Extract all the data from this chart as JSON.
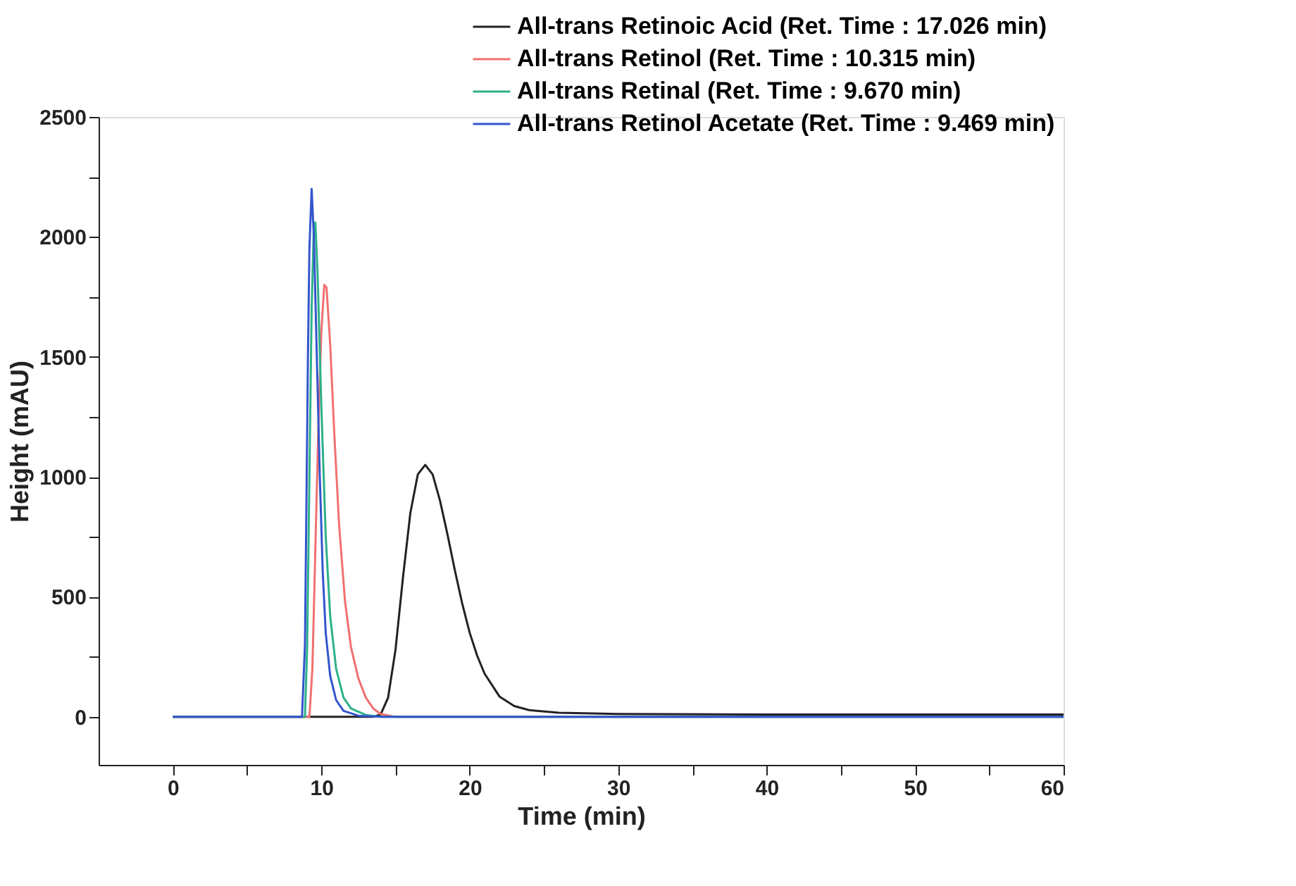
{
  "chart_data": {
    "type": "line",
    "xlabel": "Time (min)",
    "ylabel": "Height (mAU)",
    "xlim": [
      -5,
      60
    ],
    "ylim": [
      -200,
      2500
    ],
    "xticks": [
      0,
      {
        "value": 5,
        "label": null
      },
      10,
      {
        "value": 15,
        "label": null
      },
      20,
      {
        "value": 25,
        "label": null
      },
      30,
      {
        "value": 35,
        "label": null
      },
      40,
      {
        "value": 45,
        "label": null
      },
      50,
      {
        "value": 55,
        "label": null
      },
      60
    ],
    "yticks": [
      0,
      {
        "value": 250,
        "label": null
      },
      500,
      {
        "value": 750,
        "label": null
      },
      1000,
      {
        "value": 1250,
        "label": null
      },
      1500,
      {
        "value": 1750,
        "label": null
      },
      2000,
      {
        "value": 2250,
        "label": null
      },
      2500
    ],
    "legend": "top right",
    "grid": false,
    "marker": "none",
    "line_style": "solid",
    "series": [
      {
        "name": "All-trans Retinoic Acid (Ret. Time : 17.026 min)",
        "color": "#222222",
        "x": [
          0,
          13.5,
          14.0,
          14.5,
          15.0,
          15.5,
          16.0,
          16.5,
          17.0,
          17.5,
          18.0,
          18.5,
          19.0,
          19.5,
          20.0,
          20.5,
          21,
          22,
          23,
          24,
          26,
          30,
          40,
          60
        ],
        "values": [
          0,
          0,
          10,
          80,
          280,
          580,
          850,
          1010,
          1050,
          1010,
          900,
          760,
          610,
          470,
          350,
          255,
          180,
          85,
          45,
          28,
          17,
          12,
          10,
          10
        ]
      },
      {
        "name": "All-trans Retinol (Ret. Time : 10.315 min)",
        "color": "#f07070",
        "x": [
          0,
          9.2,
          9.4,
          9.6,
          9.8,
          10.0,
          10.2,
          10.35,
          10.6,
          10.9,
          11.2,
          11.6,
          12.0,
          12.5,
          13.0,
          13.5,
          14.0,
          15,
          60
        ],
        "values": [
          0,
          0,
          200,
          700,
          1200,
          1600,
          1800,
          1790,
          1550,
          1150,
          800,
          480,
          290,
          160,
          80,
          35,
          12,
          0,
          0
        ]
      },
      {
        "name": "All-trans Retinal (Ret. Time : 9.670 min)",
        "color": "#2db08a",
        "x": [
          0,
          8.9,
          9.05,
          9.2,
          9.35,
          9.5,
          9.6,
          9.75,
          10.0,
          10.3,
          10.6,
          11.0,
          11.5,
          12.0,
          13,
          14,
          60
        ],
        "values": [
          0,
          0,
          300,
          1000,
          1700,
          2050,
          2060,
          1850,
          1300,
          750,
          420,
          200,
          80,
          35,
          8,
          0,
          0
        ]
      },
      {
        "name": "All-trans Retinol Acetate (Ret. Time : 9.469 min)",
        "color": "#3355cc",
        "x": [
          0,
          8.7,
          8.9,
          9.0,
          9.1,
          9.2,
          9.35,
          9.5,
          9.7,
          9.9,
          10.1,
          10.3,
          10.6,
          11.0,
          11.5,
          12.5,
          14,
          60
        ],
        "values": [
          0,
          0,
          300,
          900,
          1500,
          1950,
          2200,
          2000,
          1500,
          1000,
          600,
          350,
          170,
          70,
          25,
          5,
          0,
          0
        ]
      }
    ]
  }
}
